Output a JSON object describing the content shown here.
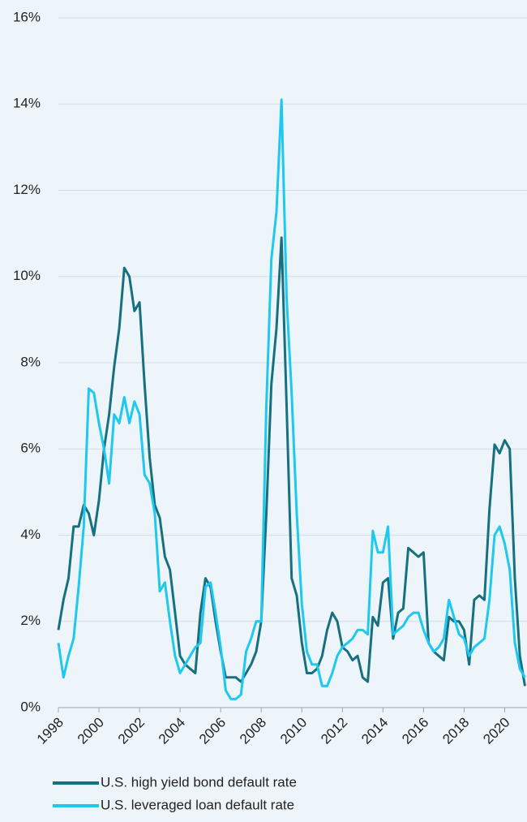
{
  "chart_data": {
    "type": "line",
    "x": [
      1998,
      1998.25,
      1998.5,
      1998.75,
      1999,
      1999.25,
      1999.5,
      1999.75,
      2000,
      2000.25,
      2000.5,
      2000.75,
      2001,
      2001.25,
      2001.5,
      2001.75,
      2002,
      2002.25,
      2002.5,
      2002.75,
      2003,
      2003.25,
      2003.5,
      2003.75,
      2004,
      2004.25,
      2004.5,
      2004.75,
      2005,
      2005.25,
      2005.5,
      2005.75,
      2006,
      2006.25,
      2006.5,
      2006.75,
      2007,
      2007.25,
      2007.5,
      2007.75,
      2008,
      2008.25,
      2008.5,
      2008.75,
      2009,
      2009.25,
      2009.5,
      2009.75,
      2010,
      2010.25,
      2010.5,
      2010.75,
      2011,
      2011.25,
      2011.5,
      2011.75,
      2012,
      2012.25,
      2012.5,
      2012.75,
      2013,
      2013.25,
      2013.5,
      2013.75,
      2014,
      2014.25,
      2014.5,
      2014.75,
      2015,
      2015.25,
      2015.5,
      2015.75,
      2016,
      2016.25,
      2016.5,
      2016.75,
      2017,
      2017.25,
      2017.5,
      2017.75,
      2018,
      2018.25,
      2018.5,
      2018.75,
      2019,
      2019.25,
      2019.5,
      2019.75,
      2020,
      2020.25,
      2020.5,
      2020.75,
      2021
    ],
    "series": [
      {
        "name": "U.S. high yield bond default rate",
        "color": "#17707f",
        "values": [
          1.8,
          2.5,
          3.0,
          4.2,
          4.2,
          4.7,
          4.5,
          4.0,
          4.8,
          6.0,
          6.8,
          7.9,
          8.8,
          10.2,
          10.0,
          9.2,
          9.4,
          7.5,
          5.8,
          4.7,
          4.4,
          3.5,
          3.2,
          2.2,
          1.2,
          1.0,
          0.9,
          0.8,
          2.2,
          3.0,
          2.8,
          2.0,
          1.3,
          0.7,
          0.7,
          0.7,
          0.6,
          0.8,
          1.0,
          1.3,
          2.0,
          4.5,
          7.5,
          8.8,
          10.9,
          7.0,
          3.0,
          2.6,
          1.5,
          0.8,
          0.8,
          0.9,
          1.2,
          1.8,
          2.2,
          2.0,
          1.4,
          1.3,
          1.1,
          1.2,
          0.7,
          0.6,
          2.1,
          1.9,
          2.9,
          3.0,
          1.6,
          2.2,
          2.3,
          3.7,
          3.6,
          3.5,
          3.6,
          1.5,
          1.3,
          1.2,
          1.1,
          2.1,
          2.0,
          2.0,
          1.8,
          1.0,
          2.5,
          2.6,
          2.5,
          4.6,
          6.1,
          5.9,
          6.2,
          6.0,
          3.0,
          1.2,
          0.5
        ]
      },
      {
        "name": "U.S. leveraged loan default rate",
        "color": "#1ec8ef",
        "values": [
          1.5,
          0.7,
          1.2,
          1.6,
          2.8,
          4.2,
          7.4,
          7.3,
          6.6,
          6.0,
          5.2,
          6.8,
          6.6,
          7.2,
          6.6,
          7.1,
          6.8,
          5.4,
          5.2,
          4.5,
          2.7,
          2.9,
          2.0,
          1.2,
          0.8,
          1.0,
          1.2,
          1.4,
          1.5,
          2.8,
          2.9,
          2.2,
          1.4,
          0.4,
          0.2,
          0.2,
          0.3,
          1.3,
          1.6,
          2.0,
          2.0,
          7.0,
          10.4,
          11.5,
          14.1,
          9.5,
          7.3,
          4.5,
          2.4,
          1.3,
          1.0,
          1.0,
          0.5,
          0.5,
          0.8,
          1.2,
          1.4,
          1.5,
          1.6,
          1.8,
          1.8,
          1.7,
          4.1,
          3.6,
          3.6,
          4.2,
          1.7,
          1.8,
          1.9,
          2.1,
          2.2,
          2.2,
          1.8,
          1.5,
          1.3,
          1.4,
          1.6,
          2.5,
          2.1,
          1.7,
          1.6,
          1.2,
          1.4,
          1.5,
          1.6,
          2.5,
          4.0,
          4.2,
          3.8,
          3.2,
          1.5,
          0.9,
          0.7
        ]
      }
    ],
    "xlim": [
      1998,
      2021.1
    ],
    "xticks": [
      1998,
      2000,
      2002,
      2004,
      2006,
      2008,
      2010,
      2012,
      2014,
      2016,
      2018,
      2020
    ],
    "ylim": [
      0,
      16
    ],
    "yticks": [
      {
        "value": 0,
        "label": "0%"
      },
      {
        "value": 2,
        "label": "2%"
      },
      {
        "value": 4,
        "label": "4%"
      },
      {
        "value": 6,
        "label": "6%"
      },
      {
        "value": 8,
        "label": "8%"
      },
      {
        "value": 10,
        "label": "10%"
      },
      {
        "value": 12,
        "label": "12%"
      },
      {
        "value": 14,
        "label": "14%"
      },
      {
        "value": 16,
        "label": "16%"
      }
    ],
    "grid": true
  }
}
